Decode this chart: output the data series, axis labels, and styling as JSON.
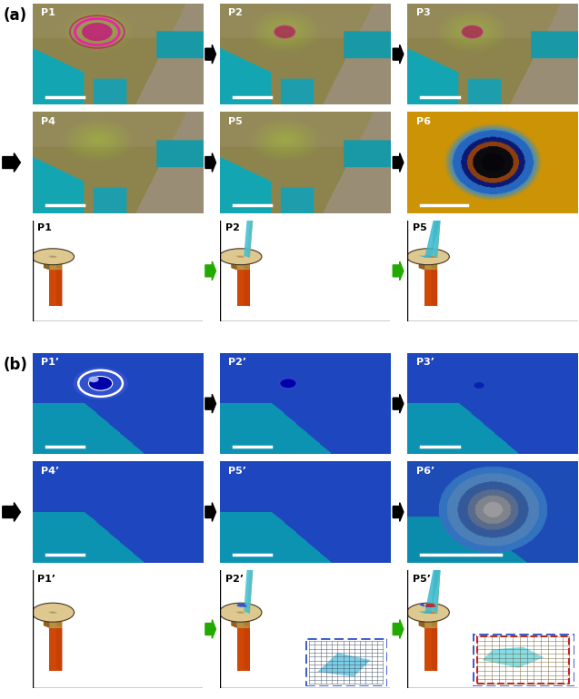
{
  "fig_width": 6.37,
  "fig_height": 7.7,
  "panel_a_label": "(a)",
  "panel_b_label": "(b)",
  "labels_a_r1": [
    "P1",
    "P2",
    "P3"
  ],
  "labels_a_r2": [
    "P4",
    "P5",
    "P6"
  ],
  "labels_illus_a": [
    "P1",
    "P2",
    "P5"
  ],
  "labels_b_r1": [
    "P1’",
    "P2’",
    "P3’"
  ],
  "labels_b_r2": [
    "P4’",
    "P5’",
    "P6’"
  ],
  "labels_illus_b": [
    "P1’",
    "P2’",
    "P5’"
  ],
  "arrow_black": "#111111",
  "arrow_green": "#22aa00",
  "white": "#ffffff",
  "black": "#000000"
}
